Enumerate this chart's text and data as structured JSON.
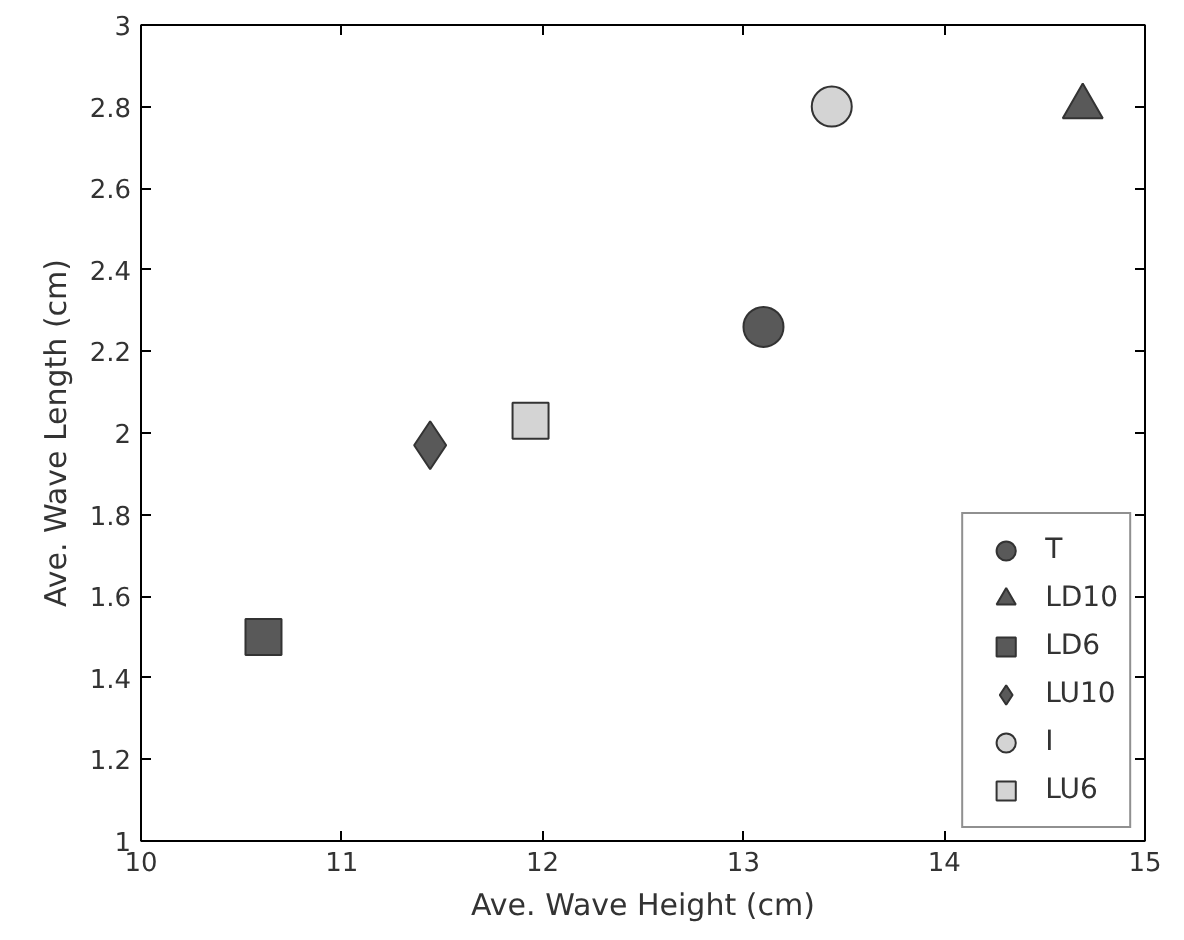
{
  "chart_data": {
    "type": "scatter",
    "xlabel": "Ave. Wave Height (cm)",
    "ylabel": "Ave. Wave Length (cm)",
    "xlim": [
      10,
      15
    ],
    "xticks": [
      10,
      11,
      12,
      13,
      14,
      15
    ],
    "ylim": [
      1,
      3
    ],
    "yticks": [
      1,
      1.2,
      1.4,
      1.6,
      1.8,
      2,
      2.2,
      2.4,
      2.6,
      2.8,
      3
    ],
    "grid": false,
    "legend": "bottom right",
    "series": [
      {
        "name": "T",
        "color": "#595959",
        "marker": "circle",
        "x": [
          13.1
        ],
        "values": [
          2.26
        ]
      },
      {
        "name": "LD10",
        "color": "#595959",
        "marker": "triangle",
        "x": [
          14.69
        ],
        "values": [
          2.8
        ]
      },
      {
        "name": "LD6",
        "color": "#595959",
        "marker": "square",
        "x": [
          10.61
        ],
        "values": [
          1.5
        ]
      },
      {
        "name": "LU10",
        "color": "#595959",
        "marker": "diamond",
        "x": [
          11.44
        ],
        "values": [
          1.97
        ]
      },
      {
        "name": "I",
        "color": "#d4d4d4",
        "marker": "circle",
        "x": [
          13.44
        ],
        "values": [
          2.8
        ]
      },
      {
        "name": "LU6",
        "color": "#d4d4d4",
        "marker": "square",
        "x": [
          11.94
        ],
        "values": [
          2.03
        ]
      }
    ]
  }
}
